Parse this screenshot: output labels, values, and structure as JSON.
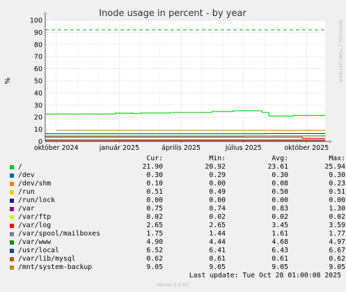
{
  "chart_data": {
    "type": "line",
    "title": "Inode usage in percent - by year",
    "ylabel": "%",
    "ylim": [
      0,
      100
    ],
    "yticks": [
      0,
      10,
      20,
      30,
      40,
      50,
      60,
      70,
      80,
      90,
      100
    ],
    "xlim": [
      "2024-09-15",
      "2025-10-28"
    ],
    "xticks": [
      {
        "date": "2024-10-01",
        "label": "október 2024"
      },
      {
        "date": "2025-01-01",
        "label": "január 2025"
      },
      {
        "date": "2025-04-01",
        "label": "április 2025"
      },
      {
        "date": "2025-07-01",
        "label": "július 2025"
      },
      {
        "date": "2025-10-01",
        "label": "október 2025"
      }
    ],
    "warning_line": 92,
    "grid": true,
    "series": [
      {
        "name": "/",
        "color": "#00cc00",
        "points": [
          [
            "2024-09-15",
            22.6
          ],
          [
            "2024-12-25",
            22.6
          ],
          [
            "2024-12-26",
            23.4
          ],
          [
            "2025-01-20",
            23.4
          ],
          [
            "2025-01-21",
            23.0
          ],
          [
            "2025-01-31",
            23.0
          ],
          [
            "2025-02-01",
            23.5
          ],
          [
            "2025-03-15",
            23.5
          ],
          [
            "2025-03-16",
            24.0
          ],
          [
            "2025-05-15",
            24.0
          ],
          [
            "2025-05-16",
            24.7
          ],
          [
            "2025-06-15",
            24.7
          ],
          [
            "2025-06-16",
            25.3
          ],
          [
            "2025-07-25",
            25.3
          ],
          [
            "2025-07-28",
            24.0
          ],
          [
            "2025-08-05",
            24.0
          ],
          [
            "2025-08-07",
            21.0
          ],
          [
            "2025-09-10",
            21.0
          ],
          [
            "2025-09-12",
            21.5
          ],
          [
            "2025-10-28",
            21.5
          ]
        ]
      },
      {
        "name": "/dev",
        "color": "#0066b3",
        "points": [
          [
            "2024-09-15",
            0.3
          ],
          [
            "2025-10-28",
            0.3
          ]
        ]
      },
      {
        "name": "/dev/shm",
        "color": "#ff8000",
        "points": [
          [
            "2024-09-15",
            0.08
          ],
          [
            "2025-10-28",
            0.1
          ]
        ]
      },
      {
        "name": "/run",
        "color": "#ffcc00",
        "points": [
          [
            "2024-09-15",
            0.5
          ],
          [
            "2025-10-28",
            0.5
          ]
        ]
      },
      {
        "name": "/run/lock",
        "color": "#330099",
        "points": [
          [
            "2024-09-15",
            0.0
          ],
          [
            "2025-10-28",
            0.0
          ]
        ]
      },
      {
        "name": "/var",
        "color": "#990099",
        "points": [
          [
            "2024-09-15",
            1.3
          ],
          [
            "2024-12-25",
            1.3
          ],
          [
            "2024-12-26",
            0.75
          ],
          [
            "2025-10-28",
            0.75
          ]
        ]
      },
      {
        "name": "/var/ftp",
        "color": "#ccff00",
        "points": [
          [
            "2024-09-15",
            0.02
          ],
          [
            "2025-10-28",
            0.02
          ]
        ]
      },
      {
        "name": "/var/log",
        "color": "#ff0000",
        "points": [
          [
            "2024-09-15",
            3.5
          ],
          [
            "2025-09-20",
            3.5
          ],
          [
            "2025-09-25",
            2.65
          ],
          [
            "2025-10-28",
            2.65
          ]
        ]
      },
      {
        "name": "/var/spool/mailboxes",
        "color": "#808080",
        "points": [
          [
            "2024-09-15",
            1.5
          ],
          [
            "2025-10-28",
            1.75
          ]
        ]
      },
      {
        "name": "/var/www",
        "color": "#008f00",
        "points": [
          [
            "2024-09-15",
            4.5
          ],
          [
            "2025-07-01",
            4.6
          ],
          [
            "2025-10-28",
            4.9
          ]
        ]
      },
      {
        "name": "/usr/local",
        "color": "#00487d",
        "points": [
          [
            "2024-09-15",
            6.45
          ],
          [
            "2025-07-30",
            6.45
          ],
          [
            "2025-08-02",
            6.6
          ],
          [
            "2025-10-28",
            6.52
          ]
        ]
      },
      {
        "name": "/var/lib/mysql",
        "color": "#b35a00",
        "points": [
          [
            "2024-09-15",
            0.62
          ],
          [
            "2025-10-28",
            0.62
          ]
        ]
      },
      {
        "name": "/mnt/system-backup",
        "color": "#b38f00",
        "points": [
          [
            "2024-10-01",
            9.05
          ],
          [
            "2025-10-28",
            9.05
          ]
        ]
      }
    ]
  },
  "legend": {
    "headers": {
      "cur": "Cur:",
      "min": "Min:",
      "avg": "Avg:",
      "max": "Max:"
    },
    "rows": [
      {
        "name": "/",
        "color": "#00cc00",
        "cur": "21.90",
        "min": "20.92",
        "avg": "23.61",
        "max": "25.94"
      },
      {
        "name": "/dev",
        "color": "#0066b3",
        "cur": "0.30",
        "min": "0.29",
        "avg": "0.30",
        "max": "0.30"
      },
      {
        "name": "/dev/shm",
        "color": "#ff8000",
        "cur": "0.10",
        "min": "0.00",
        "avg": "0.08",
        "max": "0.23"
      },
      {
        "name": "/run",
        "color": "#ffcc00",
        "cur": "0.51",
        "min": "0.49",
        "avg": "0.50",
        "max": "0.51"
      },
      {
        "name": "/run/lock",
        "color": "#330099",
        "cur": "0.00",
        "min": "0.00",
        "avg": "0.00",
        "max": "0.00"
      },
      {
        "name": "/var",
        "color": "#990099",
        "cur": "0.75",
        "min": "0.74",
        "avg": "0.83",
        "max": "1.30"
      },
      {
        "name": "/var/ftp",
        "color": "#ccff00",
        "cur": "0.02",
        "min": "0.02",
        "avg": "0.02",
        "max": "0.02"
      },
      {
        "name": "/var/log",
        "color": "#ff0000",
        "cur": "2.65",
        "min": "2.65",
        "avg": "3.45",
        "max": "3.59"
      },
      {
        "name": "/var/spool/mailboxes",
        "color": "#808080",
        "cur": "1.75",
        "min": "1.44",
        "avg": "1.61",
        "max": "1.77"
      },
      {
        "name": "/var/www",
        "color": "#008f00",
        "cur": "4.90",
        "min": "4.44",
        "avg": "4.68",
        "max": "4.97"
      },
      {
        "name": "/usr/local",
        "color": "#00487d",
        "cur": "6.52",
        "min": "6.41",
        "avg": "6.43",
        "max": "6.67"
      },
      {
        "name": "/var/lib/mysql",
        "color": "#b35a00",
        "cur": "0.62",
        "min": "0.61",
        "avg": "0.61",
        "max": "0.62"
      },
      {
        "name": "/mnt/system-backup",
        "color": "#b38f00",
        "cur": "9.05",
        "min": "9.05",
        "avg": "9.05",
        "max": "9.05"
      }
    ],
    "last_update": "Last update: Tue Oct 28 01:00:08 2025"
  },
  "side_text": "RRDTOOL / TOBI OETIKER",
  "footer": "Munin 2.0.67"
}
